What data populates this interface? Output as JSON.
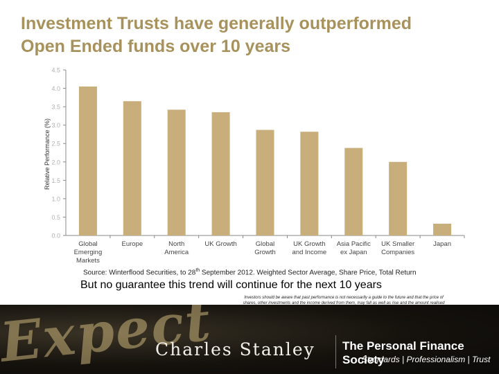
{
  "header": {
    "title_line1": "Investment Trusts have generally outperformed",
    "title_line2": "Open Ended funds over 10 years"
  },
  "colors": {
    "title": "#a8925c",
    "bar": "#c8ae7b",
    "axis": "#888888",
    "tick_text": "#b0b0b0",
    "category_text": "#444444"
  },
  "chart_data": {
    "type": "bar",
    "ylabel": "Relative Performance (%)",
    "ylim": [
      0,
      4.5
    ],
    "yticks": [
      "0.0",
      "0.5",
      "1.0",
      "1.5",
      "2.0",
      "2.5",
      "3.0",
      "3.5",
      "4.0",
      "4.5"
    ],
    "grid": false,
    "categories": [
      [
        "Global",
        "Emerging",
        "Markets"
      ],
      [
        "Europe"
      ],
      [
        "North",
        "America"
      ],
      [
        "UK Growth"
      ],
      [
        "Global",
        "Growth"
      ],
      [
        "UK Growth",
        "and Income"
      ],
      [
        "Asia Pacific",
        "ex Japan"
      ],
      [
        "UK Smaller",
        "Companies"
      ],
      [
        "Japan"
      ]
    ],
    "values": [
      4.05,
      3.65,
      3.42,
      3.35,
      2.87,
      2.82,
      2.38,
      2.0,
      0.32
    ]
  },
  "source": {
    "text_before": "Source: Winterflood Securities, to 28",
    "superscript": "th",
    "text_after": " September 2012. Weighted Sector Average, Share Price, Total Return"
  },
  "caveat": "But no guarantee this trend will continue for the next 10 years",
  "disclaimer": "Investors should be aware that past performance is not necessarily a guide to the future and that the price of shares, other investments and the income derived from them, may fall as well as rise and the amount realised may be less than their original sum.",
  "footer": {
    "expect_logo": "Expect",
    "charles_stanley": "Charles Stanley",
    "pfs_name": "The Personal Finance Society",
    "pfs_tagline": "Standards | Professionalism | Trust"
  }
}
